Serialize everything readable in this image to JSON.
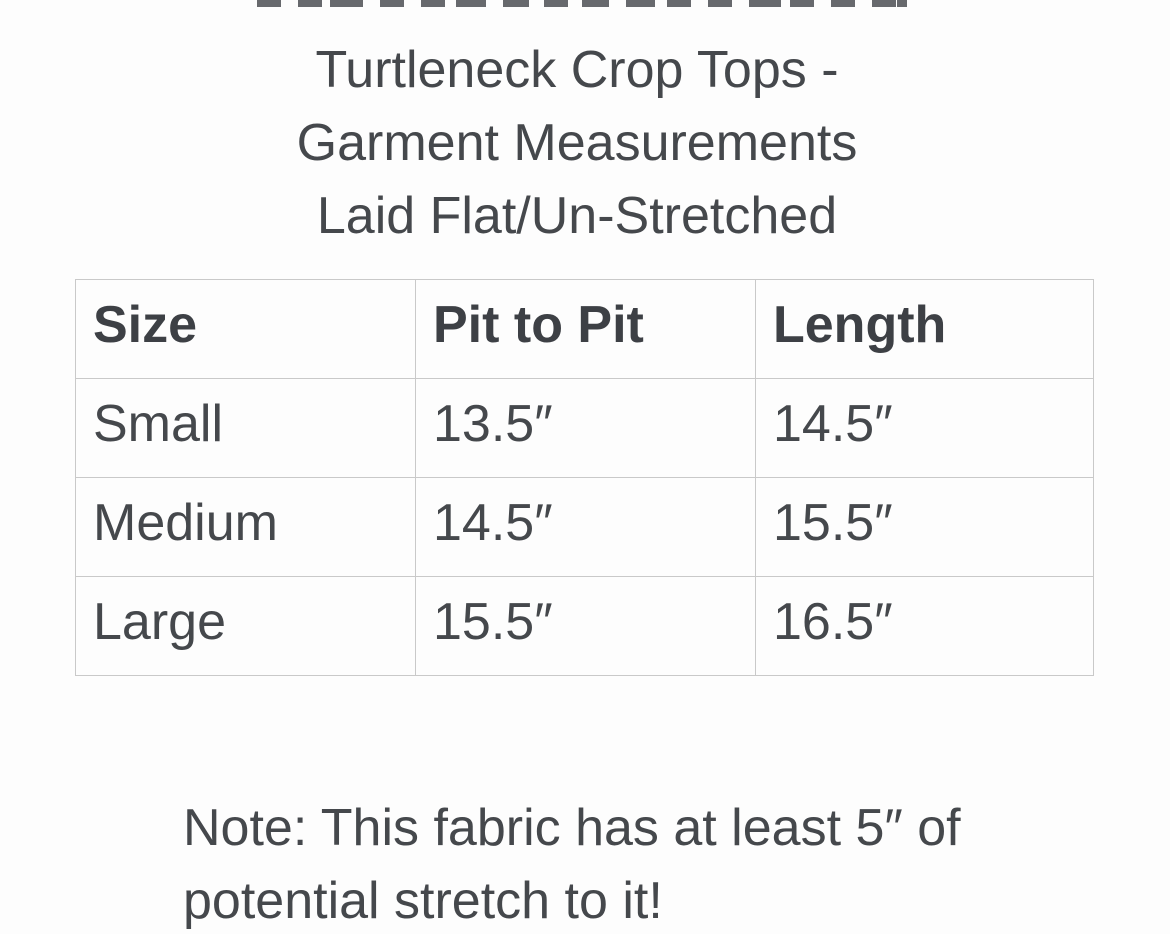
{
  "colors": {
    "background": "#fdfdfd",
    "text": "#45484c",
    "header_text": "#3d4045",
    "table_border": "#c9c9c9"
  },
  "top_cropped_line": {
    "present": true,
    "description": "unreadable bottom slivers of a text line cut off by the top edge of the image"
  },
  "title": {
    "lines": [
      "Turtleneck Crop Tops -",
      "Garment Measurements",
      "Laid Flat/Un-Stretched"
    ]
  },
  "table": {
    "columns": [
      "Size",
      "Pit to Pit",
      "Length"
    ],
    "rows": [
      [
        "Small",
        "13.5″",
        "14.5″"
      ],
      [
        "Medium",
        "14.5″",
        "15.5″"
      ],
      [
        "Large",
        "15.5″",
        "16.5″"
      ]
    ]
  },
  "note": {
    "lines": [
      "Note: This fabric has at least 5″ of",
      "potential stretch to it!"
    ],
    "full_text": "Note: This fabric has at least 5″ of potential stretch to it!"
  }
}
